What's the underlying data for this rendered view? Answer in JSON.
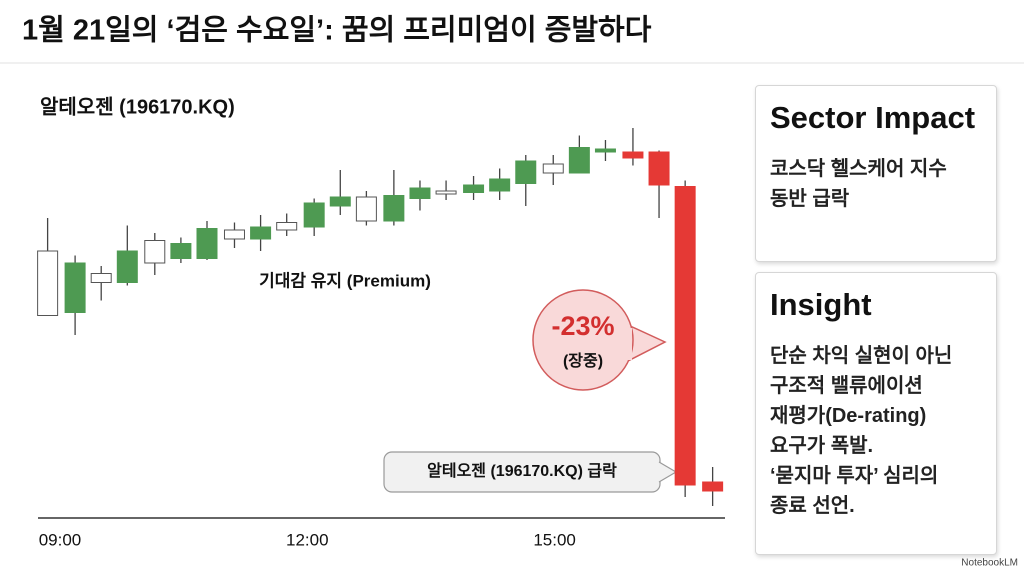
{
  "header": {
    "title": "1월 21일의 ‘검은 수요일’: 꿈의 프리미엄이 증발하다"
  },
  "chart_data": {
    "type": "candlestick",
    "title": "알테오젠 (196170.KQ)",
    "x": [
      531,
      551,
      570,
      589,
      609,
      628,
      647,
      667,
      686,
      705,
      725,
      744,
      763,
      783,
      802,
      821,
      841,
      860,
      879,
      899,
      918,
      937,
      957,
      976,
      995,
      1015
    ],
    "open": [
      89.0,
      89.2,
      91.2,
      91.2,
      92.5,
      92.8,
      92.8,
      94.1,
      94.1,
      94.7,
      94.9,
      96.3,
      95.3,
      95.3,
      96.8,
      97.1,
      97.2,
      97.3,
      97.8,
      98.5,
      98.5,
      99.9,
      99.9,
      99.9,
      97.6,
      77.9
    ],
    "close": [
      93.3,
      92.5,
      91.8,
      93.3,
      94.0,
      93.8,
      94.8,
      94.7,
      94.9,
      95.2,
      96.5,
      96.9,
      96.9,
      97.0,
      97.5,
      97.3,
      97.7,
      98.1,
      99.3,
      99.1,
      100.2,
      100.1,
      99.5,
      97.7,
      77.7,
      77.3
    ],
    "high": [
      95.5,
      93.0,
      92.3,
      95.0,
      94.5,
      94.2,
      95.3,
      95.2,
      95.7,
      95.8,
      96.8,
      98.7,
      97.3,
      98.7,
      98.0,
      98.0,
      98.3,
      98.8,
      99.7,
      99.7,
      101.0,
      100.7,
      101.5,
      100.0,
      98.0,
      78.9
    ],
    "low": [
      89.0,
      87.7,
      90.0,
      91.0,
      91.7,
      92.5,
      92.7,
      93.5,
      93.3,
      94.3,
      94.3,
      95.7,
      95.0,
      95.0,
      96.0,
      96.7,
      96.7,
      96.7,
      96.3,
      97.7,
      98.5,
      99.3,
      99.0,
      95.5,
      76.9,
      76.3
    ],
    "colors": [
      "#ffffff",
      "#4e9a52",
      "#ffffff",
      "#4e9a52",
      "#ffffff",
      "#4e9a52",
      "#4e9a52",
      "#ffffff",
      "#4e9a52",
      "#ffffff",
      "#4e9a52",
      "#4e9a52",
      "#ffffff",
      "#4e9a52",
      "#4e9a52",
      "#ffffff",
      "#4e9a52",
      "#4e9a52",
      "#4e9a52",
      "#ffffff",
      "#4e9a52",
      "#4e9a52",
      "#e53935",
      "#e53935",
      "#e53935",
      "#e53935"
    ],
    "xlim": [
      524,
      1024
    ],
    "xticks": [
      {
        "value": 540,
        "label": "09:00"
      },
      {
        "value": 720,
        "label": "12:00"
      },
      {
        "value": 900,
        "label": "15:00"
      }
    ],
    "ylim": [
      75.7,
      102.7
    ],
    "annotations": [
      "기대감 유지 (Premium)",
      "-23%",
      "(장중)",
      "알테오젠 (196170.KQ) 급락"
    ]
  },
  "panels": [
    {
      "title": "Sector Impact",
      "lines": [
        "코스닥 헬스케어 지수",
        "동반 급락"
      ]
    },
    {
      "title": "Insight",
      "lines": [
        "단순 차익 실현이 아닌",
        "구조적 밸류에이션",
        "재평가(De-rating)",
        "요구가 폭발.",
        "‘묻지마 투자’ 심리의",
        "종료 선언."
      ]
    }
  ],
  "footer": "NotebookLM"
}
